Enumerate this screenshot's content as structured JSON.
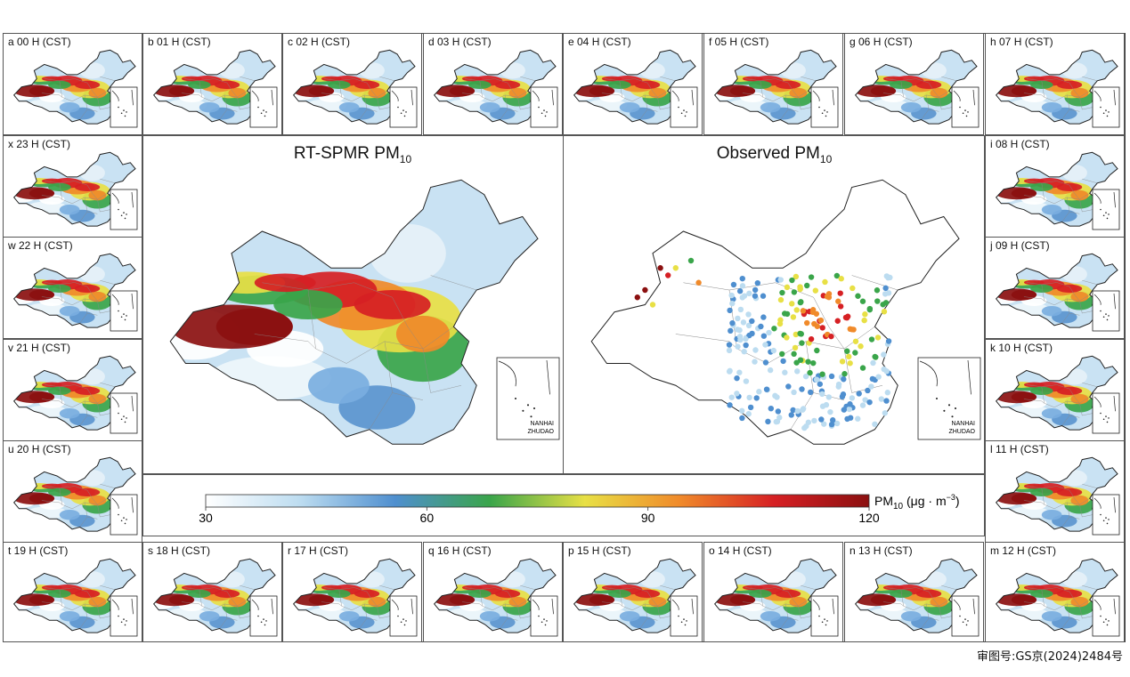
{
  "footer_text": "审图号:GS京(2024)2484号",
  "hour_panels": [
    {
      "label": "a 00 H (CST)"
    },
    {
      "label": "b 01 H (CST)"
    },
    {
      "label": "c 02 H (CST)"
    },
    {
      "label": "d 03 H (CST)"
    },
    {
      "label": "e 04 H (CST)"
    },
    {
      "label": "f 05 H (CST)"
    },
    {
      "label": "g 06 H (CST)"
    },
    {
      "label": "h 07 H (CST)"
    },
    {
      "label": "i 08 H (CST)"
    },
    {
      "label": "j 09 H (CST)"
    },
    {
      "label": "k 10 H (CST)"
    },
    {
      "label": "l 11 H (CST)"
    },
    {
      "label": "m 12 H (CST)"
    },
    {
      "label": "n 13 H (CST)"
    },
    {
      "label": "o 14 H (CST)"
    },
    {
      "label": "p 15 H (CST)"
    },
    {
      "label": "q 16 H (CST)"
    },
    {
      "label": "r 17 H (CST)"
    },
    {
      "label": "s 18 H (CST)"
    },
    {
      "label": "t 19 H (CST)"
    },
    {
      "label": "u 20 H (CST)"
    },
    {
      "label": "v 21 H (CST)"
    },
    {
      "label": "w 22 H (CST)"
    },
    {
      "label": "x 23 H (CST)"
    }
  ],
  "chart_data": {
    "type": "heatmap",
    "panels": {
      "left_title_main": "RT-SPMR PM",
      "left_title_sub": "10",
      "right_title_main": "Observed PM",
      "right_title_sub": "10"
    },
    "inset_label_line1": "NANHAI",
    "inset_label_line2": "ZHUDAO",
    "colorbar": {
      "min": 30,
      "max": 120,
      "ticks": [
        "30",
        "60",
        "90",
        "120"
      ],
      "label_main": "PM",
      "label_sub": "10",
      "label_unit": " (μg · m",
      "label_exp": "−3",
      "label_close": ")",
      "colors": [
        "#ffffff",
        "#bcdcf0",
        "#4f8fcf",
        "#3aa54a",
        "#e8e045",
        "#f08a2a",
        "#d62024",
        "#8b1010"
      ]
    }
  }
}
